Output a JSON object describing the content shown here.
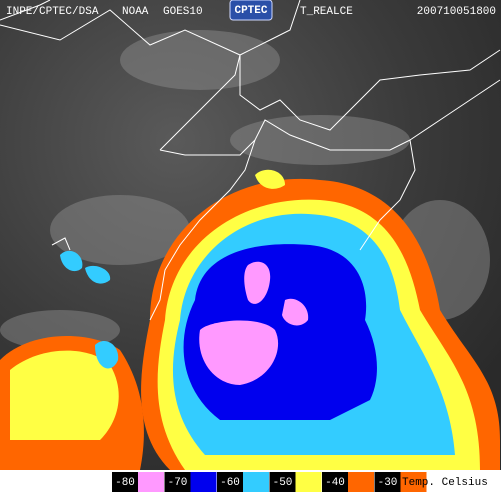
{
  "header": {
    "agency": "INPE/CPTEC/DSA",
    "operator": "NOAA",
    "satellite": "GOES10",
    "logo": "CPTEC",
    "product": "T_REALCE",
    "timestamp": "200710051800"
  },
  "legend": {
    "entries": [
      {
        "label": "-80",
        "color": "#ff99ff"
      },
      {
        "label": "-70",
        "color": "#0000ee"
      },
      {
        "label": "-60",
        "color": "#33ccff"
      },
      {
        "label": "-50",
        "color": "#ffff44"
      },
      {
        "label": "-40",
        "color": "#ff6600"
      },
      {
        "label": "-30",
        "color": "#ff6600"
      }
    ],
    "unit": "Temp. Celsius"
  }
}
